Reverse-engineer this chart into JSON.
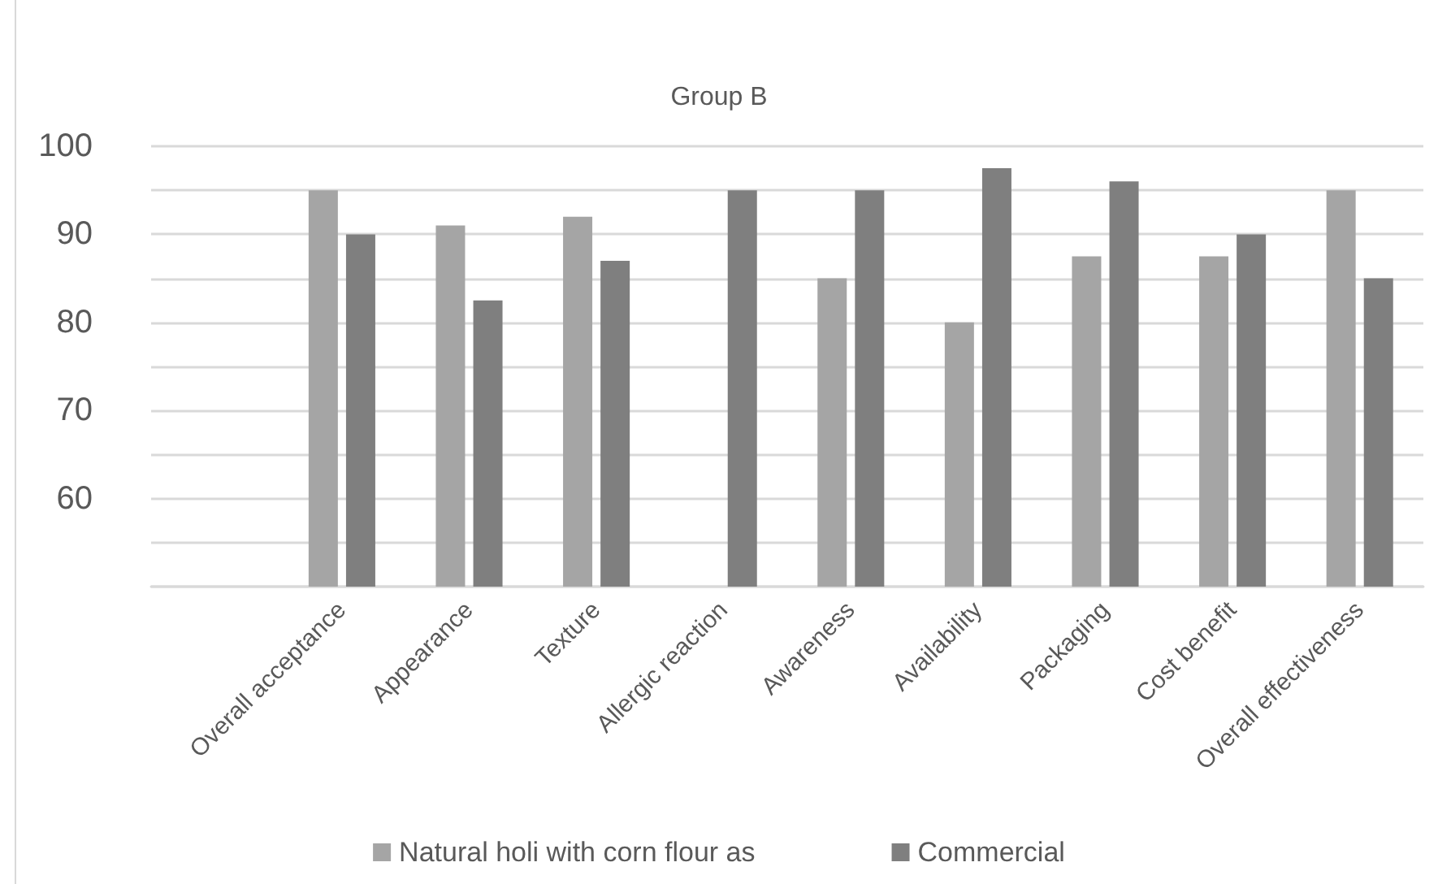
{
  "chart_data": {
    "type": "bar",
    "title": "Group B",
    "categories": [
      null,
      "Overall acceptance",
      "Appearance",
      "Texture",
      "Allergic reaction",
      "Awareness",
      "Availability",
      "Packaging",
      "Cost benefit",
      "Overall effectiveness"
    ],
    "series": [
      {
        "name": "Natural holi with corn flour as",
        "color": "#a5a5a5",
        "values": [
          null,
          95,
          91,
          92,
          null,
          85,
          80,
          87.5,
          87.5,
          95
        ]
      },
      {
        "name": "Commercial",
        "color": "#7f7f7f",
        "values": [
          null,
          90,
          82.5,
          87,
          95,
          95,
          97.5,
          96,
          90,
          85
        ]
      }
    ],
    "ylim": [
      50,
      100
    ],
    "yticks": [
      {
        "value": 50,
        "label": null
      },
      {
        "value": 55,
        "label": null
      },
      60,
      {
        "value": 65,
        "label": null
      },
      70,
      {
        "value": 75,
        "label": null
      },
      80,
      {
        "value": 85,
        "label": null
      },
      90,
      {
        "value": 95,
        "label": null
      },
      100
    ],
    "grid": "y",
    "legend": "bottom"
  }
}
